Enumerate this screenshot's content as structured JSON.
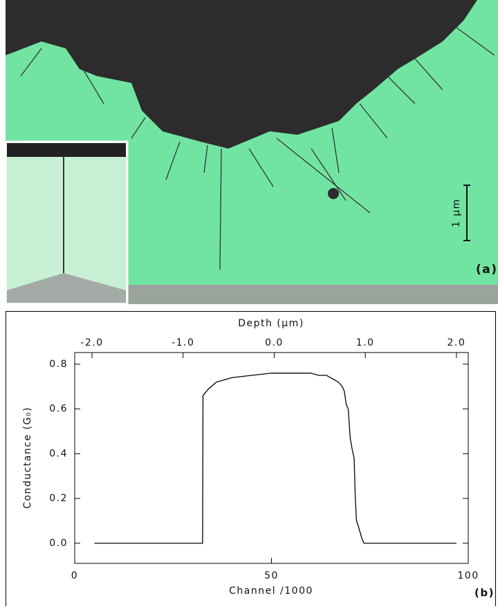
{
  "panel_a": {
    "label": "(a)",
    "scale_bar": "1 μm"
  },
  "chart_data": {
    "type": "line",
    "panel_label": "(b)",
    "xlabel": "Channel /1000",
    "x2label": "Depth (μm)",
    "ylabel": "Conductance (G₀)",
    "x": [
      5,
      10,
      15,
      20,
      25,
      30,
      32.5,
      32.6,
      34,
      36,
      38,
      40,
      45,
      50,
      55,
      60,
      62,
      64,
      65,
      66,
      67,
      68,
      68.5,
      69,
      69.5,
      70,
      70.5,
      71,
      71.3,
      71.6,
      72,
      72.5,
      73,
      73.5,
      75,
      80,
      85,
      90,
      97
    ],
    "values": [
      0,
      0,
      0,
      0,
      0,
      0,
      0,
      0.66,
      0.69,
      0.72,
      0.73,
      0.74,
      0.75,
      0.76,
      0.76,
      0.76,
      0.75,
      0.75,
      0.74,
      0.73,
      0.72,
      0.7,
      0.68,
      0.62,
      0.6,
      0.47,
      0.42,
      0.38,
      0.2,
      0.1,
      0.08,
      0.05,
      0.02,
      0,
      0,
      0,
      0,
      0,
      0
    ],
    "color": "#000000",
    "xlim": [
      0,
      100
    ],
    "xticks": [
      0,
      50,
      100
    ],
    "x2lim": [
      -2.19,
      2.13
    ],
    "x2ticks": [
      {
        "value": -2,
        "label": "-2.0"
      },
      {
        "value": -1,
        "label": "-1.0"
      },
      {
        "value": 0,
        "label": "0.0"
      },
      {
        "value": 1,
        "label": "1.0"
      },
      {
        "value": 2,
        "label": "2.0"
      }
    ],
    "ylim": [
      -0.09,
      0.852
    ],
    "yticks": [
      {
        "value": 0,
        "label": "0.0"
      },
      {
        "value": 0.2,
        "label": "0.2"
      },
      {
        "value": 0.4,
        "label": "0.4"
      },
      {
        "value": 0.6,
        "label": "0.6"
      },
      {
        "value": 0.8,
        "label": "0.8"
      }
    ]
  }
}
